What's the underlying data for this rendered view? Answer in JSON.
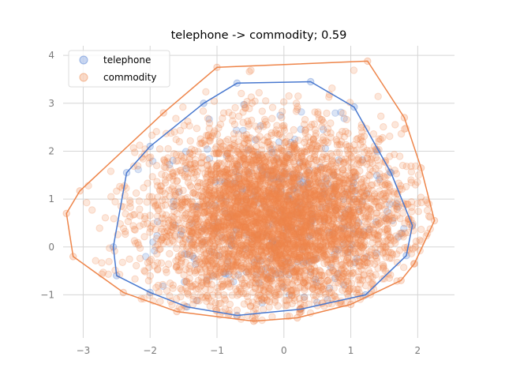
{
  "chart_data": {
    "type": "scatter",
    "title": "telephone -> commodity; 0.59",
    "xlabel": "",
    "ylabel": "",
    "xlim": [
      -3.3,
      2.55
    ],
    "ylim": [
      -1.9,
      4.2
    ],
    "xticks": [
      -3,
      -2,
      -1,
      0,
      1,
      2
    ],
    "yticks": [
      -1,
      0,
      1,
      2,
      3,
      4
    ],
    "grid": true,
    "legend_position": "top-left",
    "series": [
      {
        "name": "telephone",
        "color": "#4878cf",
        "point_count": 300,
        "center": [
          0.0,
          0.6
        ],
        "hull": [
          [
            -2.5,
            -0.6
          ],
          [
            -2.55,
            0.0
          ],
          [
            -2.35,
            1.55
          ],
          [
            -2.0,
            2.1
          ],
          [
            -1.2,
            3.0
          ],
          [
            -0.7,
            3.42
          ],
          [
            0.4,
            3.45
          ],
          [
            1.05,
            2.92
          ],
          [
            1.6,
            1.55
          ],
          [
            1.92,
            0.45
          ],
          [
            1.83,
            -0.18
          ],
          [
            1.22,
            -1.0
          ],
          [
            0.25,
            -1.3
          ],
          [
            -0.7,
            -1.43
          ],
          [
            -1.45,
            -1.25
          ],
          [
            -2.0,
            -0.95
          ]
        ]
      },
      {
        "name": "commodity",
        "color": "#ee854a",
        "point_count": 30000,
        "center": [
          -0.1,
          0.55
        ],
        "hull": [
          [
            -3.15,
            -0.2
          ],
          [
            -3.25,
            0.7
          ],
          [
            -3.05,
            1.17
          ],
          [
            -1.8,
            2.8
          ],
          [
            -1.0,
            3.75
          ],
          [
            1.25,
            3.88
          ],
          [
            1.8,
            2.7
          ],
          [
            2.05,
            1.65
          ],
          [
            2.25,
            0.55
          ],
          [
            1.95,
            -0.35
          ],
          [
            1.75,
            -0.7
          ],
          [
            1.0,
            -1.2
          ],
          [
            0.2,
            -1.48
          ],
          [
            -0.45,
            -1.55
          ],
          [
            -1.6,
            -1.35
          ],
          [
            -2.4,
            -0.95
          ]
        ]
      }
    ]
  }
}
